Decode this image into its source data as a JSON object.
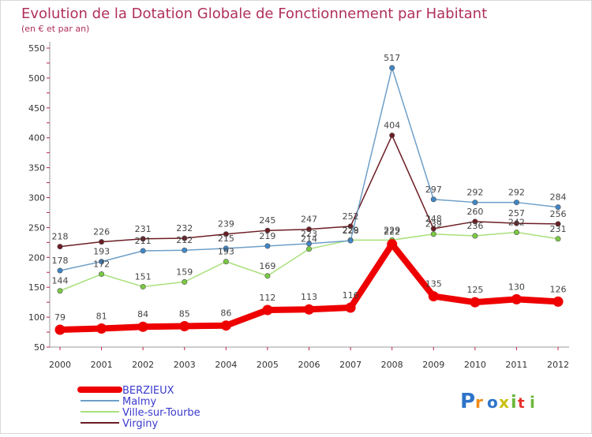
{
  "chart_data": {
    "type": "line",
    "title": "Evolution de la Dotation Globale de Fonctionnement par Habitant",
    "subtitle": "(en € et par an)",
    "xlabel": "",
    "ylabel": "",
    "ylim": [
      50,
      550
    ],
    "yticks": [
      50,
      100,
      150,
      200,
      250,
      300,
      350,
      400,
      450,
      500,
      550
    ],
    "categories": [
      "2000",
      "2001",
      "2002",
      "2003",
      "2004",
      "2005",
      "2006",
      "2007",
      "2008",
      "2009",
      "2010",
      "2011",
      "2012"
    ],
    "grid": false,
    "legend_position": "bottom-left",
    "series": [
      {
        "name": "Virginy",
        "color": "#6b1d24",
        "marker": "#6b1d24",
        "values": [
          218,
          226,
          231,
          232,
          239,
          245,
          247,
          252,
          404,
          248,
          260,
          257,
          256
        ]
      },
      {
        "name": "Ville-sur-Tourbe",
        "color": "#a8e07a",
        "marker": "#7ac943",
        "values": [
          144,
          172,
          151,
          159,
          193,
          169,
          214,
          229,
          229,
          239,
          236,
          242,
          231
        ]
      },
      {
        "name": "Malmy",
        "color": "#6e9fc8",
        "marker": "#3f86c6",
        "values": [
          178,
          193,
          211,
          212,
          215,
          219,
          223,
          228,
          517,
          297,
          292,
          292,
          284
        ]
      },
      {
        "name": "BERZIEUX",
        "color": "#ee0000",
        "marker": "#ee0000",
        "values": [
          79,
          81,
          84,
          85,
          86,
          112,
          113,
          116,
          222,
          135,
          125,
          130,
          126
        ]
      }
    ]
  },
  "legend": {
    "items": [
      {
        "name": "BERZIEUX",
        "color": "#ee0000"
      },
      {
        "name": "Malmy",
        "color": "#6e9fc8"
      },
      {
        "name": "Ville-sur-Tourbe",
        "color": "#a8e07a"
      },
      {
        "name": "Virginy",
        "color": "#6b1d24"
      }
    ]
  },
  "logo": {
    "text": "Proxiti"
  }
}
